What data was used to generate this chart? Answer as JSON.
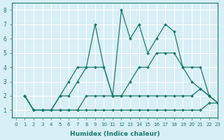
{
  "xlabel": "Humidex (Indice chaleur)",
  "ylabel": "",
  "bg_color": "#d7eff5",
  "line_color": "#1a7a6e",
  "grid_color": "#ffffff",
  "xlim": [
    -0.5,
    23
  ],
  "ylim": [
    0.5,
    8.5
  ],
  "xticks": [
    0,
    1,
    2,
    3,
    4,
    5,
    6,
    7,
    8,
    9,
    10,
    11,
    12,
    13,
    14,
    15,
    16,
    17,
    18,
    19,
    20,
    21,
    22,
    23
  ],
  "yticks": [
    1,
    2,
    3,
    4,
    5,
    6,
    7,
    8
  ],
  "series": [
    {
      "x": [
        1,
        2,
        3,
        4,
        5,
        6,
        7,
        8,
        9,
        10,
        11,
        12,
        13,
        14,
        15,
        16,
        17,
        18,
        19,
        20,
        21,
        22,
        23
      ],
      "y": [
        2,
        1,
        1,
        1,
        1,
        1,
        1,
        1,
        1,
        1,
        1,
        1,
        1,
        1,
        1,
        1,
        1,
        1,
        1,
        1,
        1,
        1.5,
        1.5
      ]
    },
    {
      "x": [
        1,
        2,
        3,
        4,
        5,
        6,
        7,
        8,
        9,
        10,
        11,
        12,
        13,
        14,
        15,
        16,
        17,
        18,
        19,
        20,
        21,
        22,
        23
      ],
      "y": [
        2,
        1,
        1,
        1,
        1,
        1,
        1,
        2,
        2,
        2,
        2,
        2,
        2,
        2,
        2,
        2,
        2,
        2,
        2,
        2,
        2.5,
        2,
        1.5
      ]
    },
    {
      "x": [
        1,
        2,
        3,
        4,
        5,
        6,
        7,
        8,
        9,
        10,
        11,
        12,
        13,
        14,
        15,
        16,
        17,
        18,
        19,
        20,
        21,
        22,
        23
      ],
      "y": [
        2,
        1,
        1,
        1,
        2,
        2,
        3,
        4,
        4,
        4,
        2,
        2,
        3,
        4,
        4,
        5,
        5,
        5,
        4,
        4,
        4,
        2,
        1.5
      ]
    },
    {
      "x": [
        1,
        2,
        3,
        4,
        5,
        6,
        7,
        8,
        9,
        10,
        11,
        12,
        13,
        14,
        15,
        16,
        17,
        18,
        19,
        20,
        21,
        22,
        23
      ],
      "y": [
        2,
        1,
        1,
        1,
        2,
        3,
        4,
        4,
        7,
        4,
        2,
        8,
        6,
        7,
        5,
        6,
        7,
        6.5,
        4,
        3,
        2.5,
        2,
        1.5
      ]
    }
  ]
}
